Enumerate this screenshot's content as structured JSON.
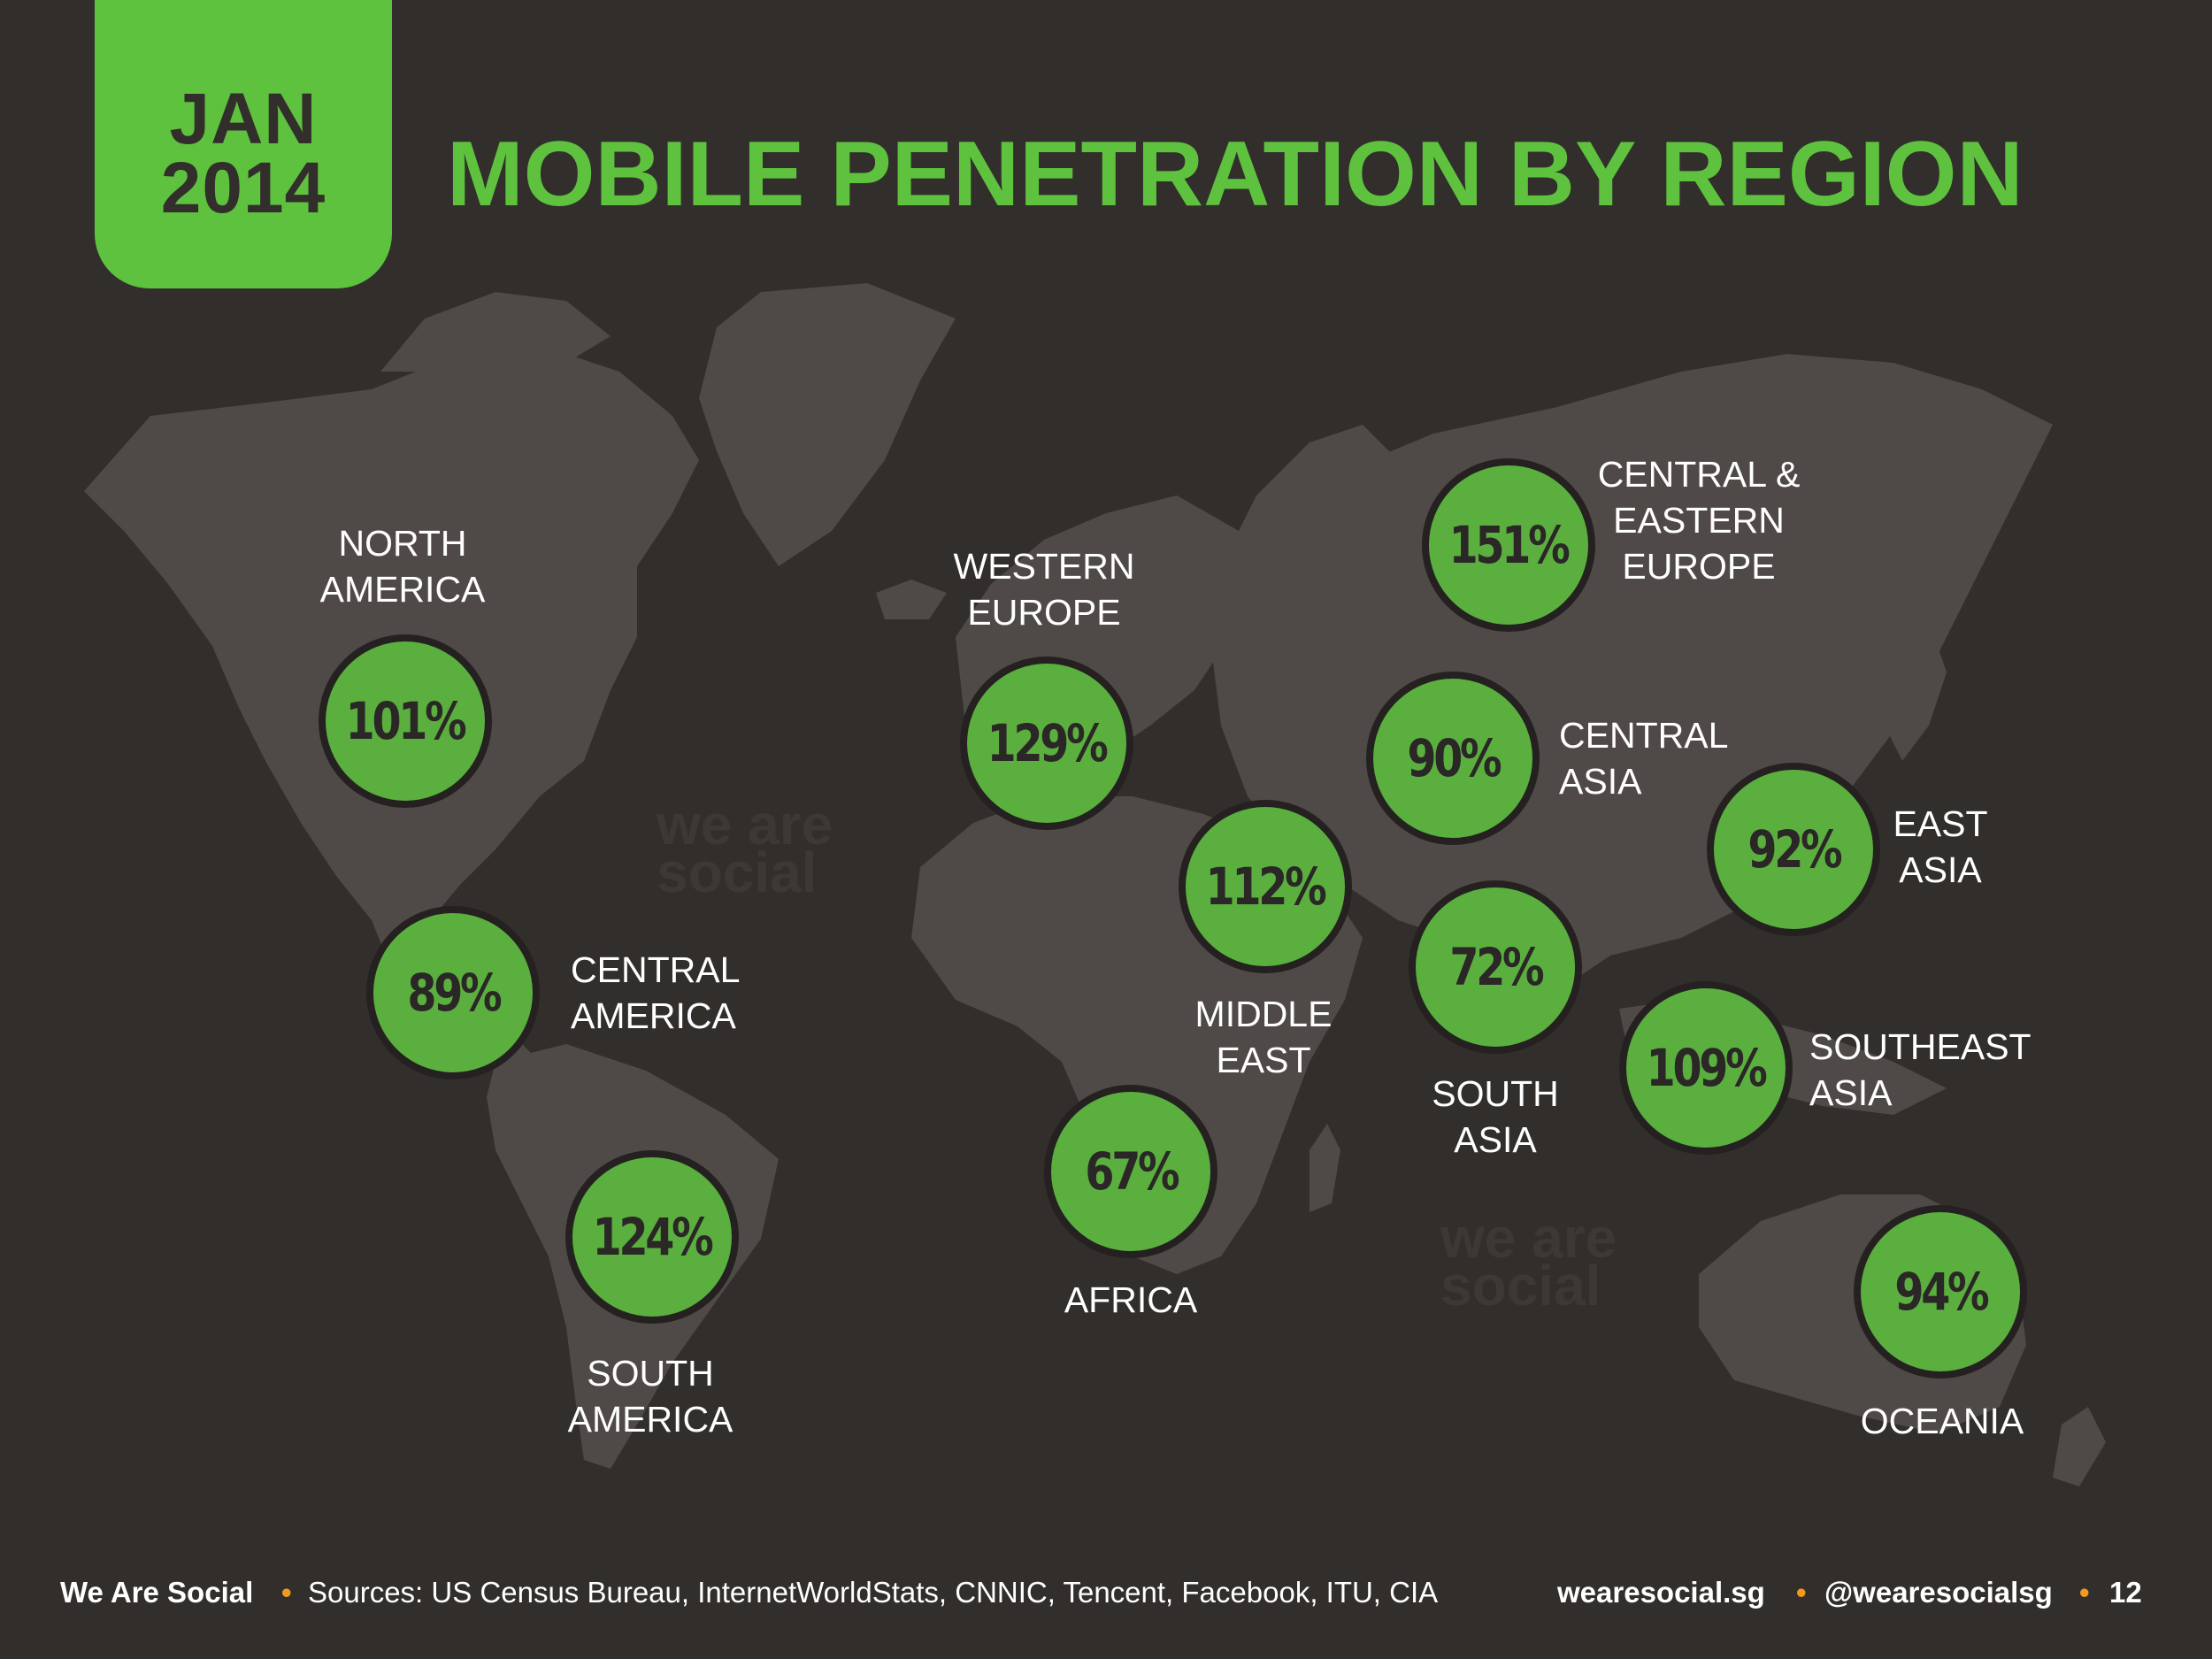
{
  "header": {
    "date_month": "JAN",
    "date_year": "2014",
    "title": "MOBILE PENETRATION BY REGION"
  },
  "watermark": "we are social",
  "regions": [
    {
      "id": "north-america",
      "name_lines": [
        "NORTH",
        "AMERICA"
      ],
      "value": "101%"
    },
    {
      "id": "central-america",
      "name_lines": [
        "CENTRAL",
        "AMERICA"
      ],
      "value": "89%"
    },
    {
      "id": "south-america",
      "name_lines": [
        "SOUTH",
        "AMERICA"
      ],
      "value": "124%"
    },
    {
      "id": "western-europe",
      "name_lines": [
        "WESTERN",
        "EUROPE"
      ],
      "value": "129%"
    },
    {
      "id": "central-eastern-europe",
      "name_lines": [
        "CENTRAL &",
        "EASTERN",
        "EUROPE"
      ],
      "value": "151%"
    },
    {
      "id": "middle-east",
      "name_lines": [
        "MIDDLE",
        "EAST"
      ],
      "value": "112%"
    },
    {
      "id": "africa",
      "name_lines": [
        "AFRICA"
      ],
      "value": "67%"
    },
    {
      "id": "central-asia",
      "name_lines": [
        "CENTRAL",
        "ASIA"
      ],
      "value": "90%"
    },
    {
      "id": "south-asia",
      "name_lines": [
        "SOUTH",
        "ASIA"
      ],
      "value": "72%"
    },
    {
      "id": "east-asia",
      "name_lines": [
        "EAST",
        "ASIA"
      ],
      "value": "92%"
    },
    {
      "id": "southeast-asia",
      "name_lines": [
        "SOUTHEAST",
        "ASIA"
      ],
      "value": "109%"
    },
    {
      "id": "oceania",
      "name_lines": [
        "OCEANIA"
      ],
      "value": "94%"
    }
  ],
  "footer": {
    "brand": "We Are Social",
    "sources": "Sources: US Census Bureau, InternetWorldStats, CNNIC, Tencent, Facebook, ITU, CIA",
    "website": "wearesocial.sg",
    "handle": "@wearesocialsg",
    "page_number": "12",
    "separator": "•"
  },
  "colors": {
    "background": "#322e2c",
    "accent_green": "#5ec23e",
    "bubble_green": "#5aaf3f",
    "land": "#4f4a48",
    "separator_dot": "#f29a1d"
  }
}
